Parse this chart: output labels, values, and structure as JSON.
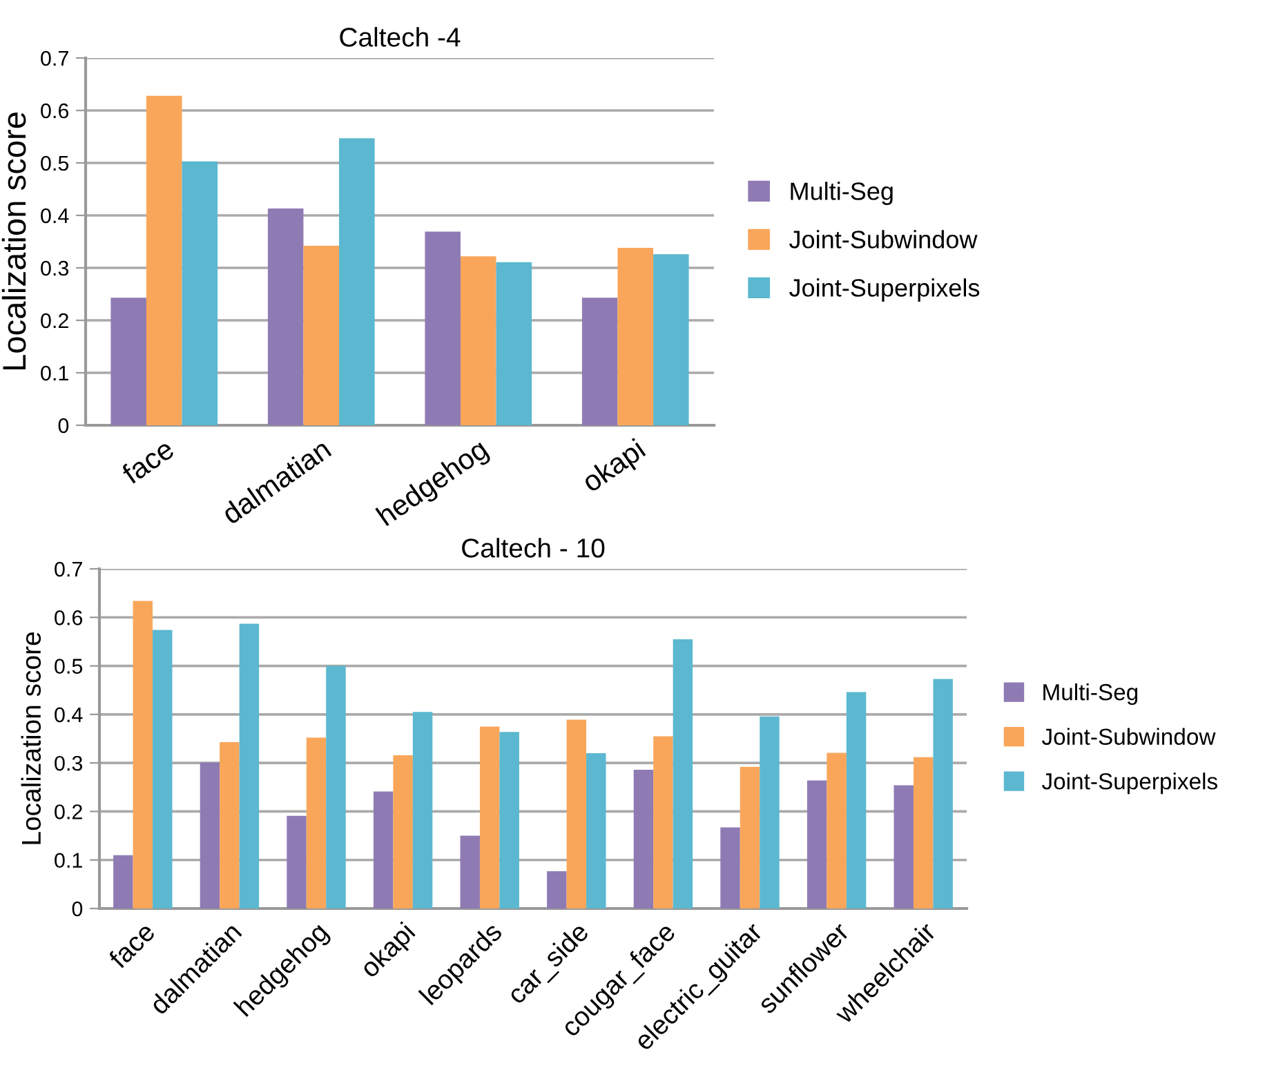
{
  "chart_data": [
    {
      "type": "bar",
      "title": "Caltech -4",
      "ylabel": "Localization score",
      "categories": [
        "face",
        "dalmatian",
        "hedgehog",
        "okapi"
      ],
      "series": [
        {
          "name": "Multi-Seg",
          "color": "#8f7bb4",
          "values": [
            0.243,
            0.413,
            0.369,
            0.243
          ]
        },
        {
          "name": "Joint-Subwindow",
          "color": "#f9a65a",
          "values": [
            0.628,
            0.342,
            0.322,
            0.338
          ]
        },
        {
          "name": "Joint-Superpixels",
          "color": "#5bb8d0",
          "values": [
            0.503,
            0.547,
            0.311,
            0.326
          ]
        }
      ],
      "ylim": [
        0,
        0.7
      ],
      "yticks": [
        0,
        0.1,
        0.2,
        0.3,
        0.4,
        0.5,
        0.6,
        0.7
      ],
      "grid": "y",
      "legend": "right"
    },
    {
      "type": "bar",
      "title": "Caltech - 10",
      "ylabel": "Localization score",
      "categories": [
        "face",
        "dalmatian",
        "hedgehog",
        "okapi",
        "leopards",
        "car_side",
        "cougar_face",
        "electric_guitar",
        "sunflower",
        "wheelchair"
      ],
      "series": [
        {
          "name": "Multi-Seg",
          "color": "#8f7bb4",
          "values": [
            0.11,
            0.301,
            0.191,
            0.241,
            0.15,
            0.077,
            0.286,
            0.167,
            0.264,
            0.254
          ]
        },
        {
          "name": "Joint-Subwindow",
          "color": "#f9a65a",
          "values": [
            0.634,
            0.343,
            0.352,
            0.316,
            0.375,
            0.389,
            0.355,
            0.292,
            0.321,
            0.312
          ]
        },
        {
          "name": "Joint-Superpixels",
          "color": "#5bb8d0",
          "values": [
            0.574,
            0.587,
            0.5,
            0.405,
            0.364,
            0.32,
            0.555,
            0.396,
            0.446,
            0.473
          ]
        }
      ],
      "ylim": [
        0,
        0.7
      ],
      "yticks": [
        0,
        0.1,
        0.2,
        0.3,
        0.4,
        0.5,
        0.6,
        0.7
      ],
      "grid": "y",
      "legend": "right"
    }
  ]
}
